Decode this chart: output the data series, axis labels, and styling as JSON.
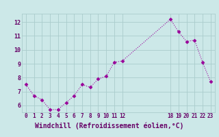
{
  "x": [
    0,
    1,
    2,
    3,
    4,
    5,
    6,
    7,
    8,
    9,
    10,
    11,
    12,
    18,
    19,
    20,
    21,
    22,
    23
  ],
  "y": [
    7.5,
    6.7,
    6.4,
    5.7,
    5.7,
    6.2,
    6.7,
    7.5,
    7.3,
    7.9,
    8.1,
    9.1,
    9.2,
    12.2,
    11.3,
    10.6,
    10.7,
    9.1,
    7.7
  ],
  "line_color": "#990099",
  "marker_color": "#990099",
  "bg_color": "#cce8e8",
  "grid_color": "#aacccc",
  "xlabel": "Windchill (Refroidissement éolien,°C)",
  "xlabel_color": "#660066",
  "xlabel_bg": "#9988bb",
  "tick_color": "#660066",
  "ylabel_ticks": [
    6,
    7,
    8,
    9,
    10,
    11,
    12
  ],
  "xticks": [
    0,
    1,
    2,
    3,
    4,
    5,
    6,
    7,
    8,
    9,
    10,
    11,
    12,
    18,
    19,
    20,
    21,
    22,
    23
  ],
  "ylim": [
    5.5,
    12.6
  ],
  "xlim": [
    -0.5,
    23.5
  ],
  "figsize": [
    3.2,
    2.0
  ],
  "dpi": 100
}
